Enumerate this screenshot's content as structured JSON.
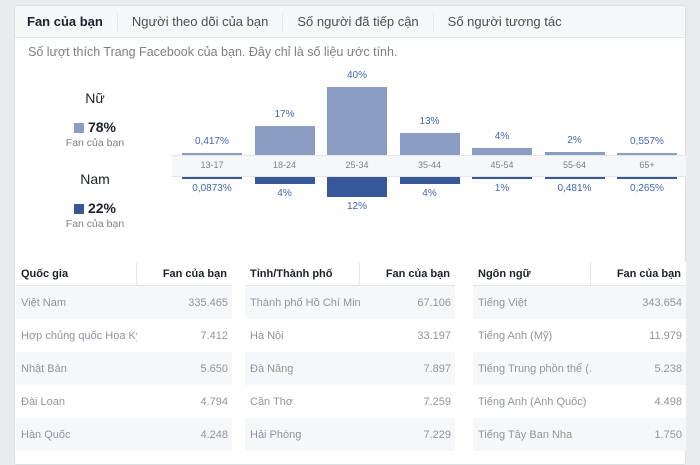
{
  "tabs": [
    "Fan của bạn",
    "Người theo dõi của bạn",
    "Số người đã tiếp cận",
    "Số người tương tác"
  ],
  "description": "Số lượt thích Trang Facebook của bạn. Đây chỉ là số liệu ước tính.",
  "legend": {
    "female": {
      "label": "Nữ",
      "percent": "78%",
      "sub": "Fan của bạn",
      "color": "#8b9dc3"
    },
    "male": {
      "label": "Nam",
      "percent": "22%",
      "sub": "Fan của bạn",
      "color": "#365899"
    }
  },
  "chart_data": {
    "type": "bar",
    "categories": [
      "13-17",
      "18-24",
      "25-34",
      "35-44",
      "45-54",
      "55-64",
      "65+"
    ],
    "series": [
      {
        "name": "Nữ",
        "values": [
          0.417,
          17,
          40,
          13,
          4,
          2,
          0.557
        ],
        "labels": [
          "0,417%",
          "17%",
          "40%",
          "13%",
          "4%",
          "2%",
          "0,557%"
        ]
      },
      {
        "name": "Nam",
        "values": [
          0.0873,
          4,
          12,
          4,
          1,
          0.481,
          0.265
        ],
        "labels": [
          "0,0873%",
          "4%",
          "12%",
          "4%",
          "1%",
          "0,481%",
          "0,265%"
        ]
      }
    ]
  },
  "tables": [
    {
      "headers": [
        "Quốc gia",
        "Fan của bạn"
      ],
      "rows": [
        [
          "Việt Nam",
          "335.465"
        ],
        [
          "Hợp chủng quốc Hoa Kỳ",
          "7.412"
        ],
        [
          "Nhật Bản",
          "5.650"
        ],
        [
          "Đài Loan",
          "4.794"
        ],
        [
          "Hàn Quốc",
          "4.248"
        ]
      ]
    },
    {
      "headers": [
        "Tỉnh/Thành phố",
        "Fan của bạn"
      ],
      "rows": [
        [
          "Thành phố Hồ Chí Minh",
          "67.106"
        ],
        [
          "Hà Nội",
          "33.197"
        ],
        [
          "Đà Nẵng",
          "7.897"
        ],
        [
          "Cần Thơ",
          "7.259"
        ],
        [
          "Hải Phòng",
          "7.229"
        ]
      ]
    },
    {
      "headers": [
        "Ngôn ngữ",
        "Fan của bạn"
      ],
      "rows": [
        [
          "Tiếng Việt",
          "343.654"
        ],
        [
          "Tiếng Anh (Mỹ)",
          "11.979"
        ],
        [
          "Tiếng Trung phồn thể (...",
          "5.238"
        ],
        [
          "Tiếng Anh (Anh Quốc)",
          "4.498"
        ],
        [
          "Tiếng Tây Ban Nha",
          "1.750"
        ]
      ]
    }
  ]
}
